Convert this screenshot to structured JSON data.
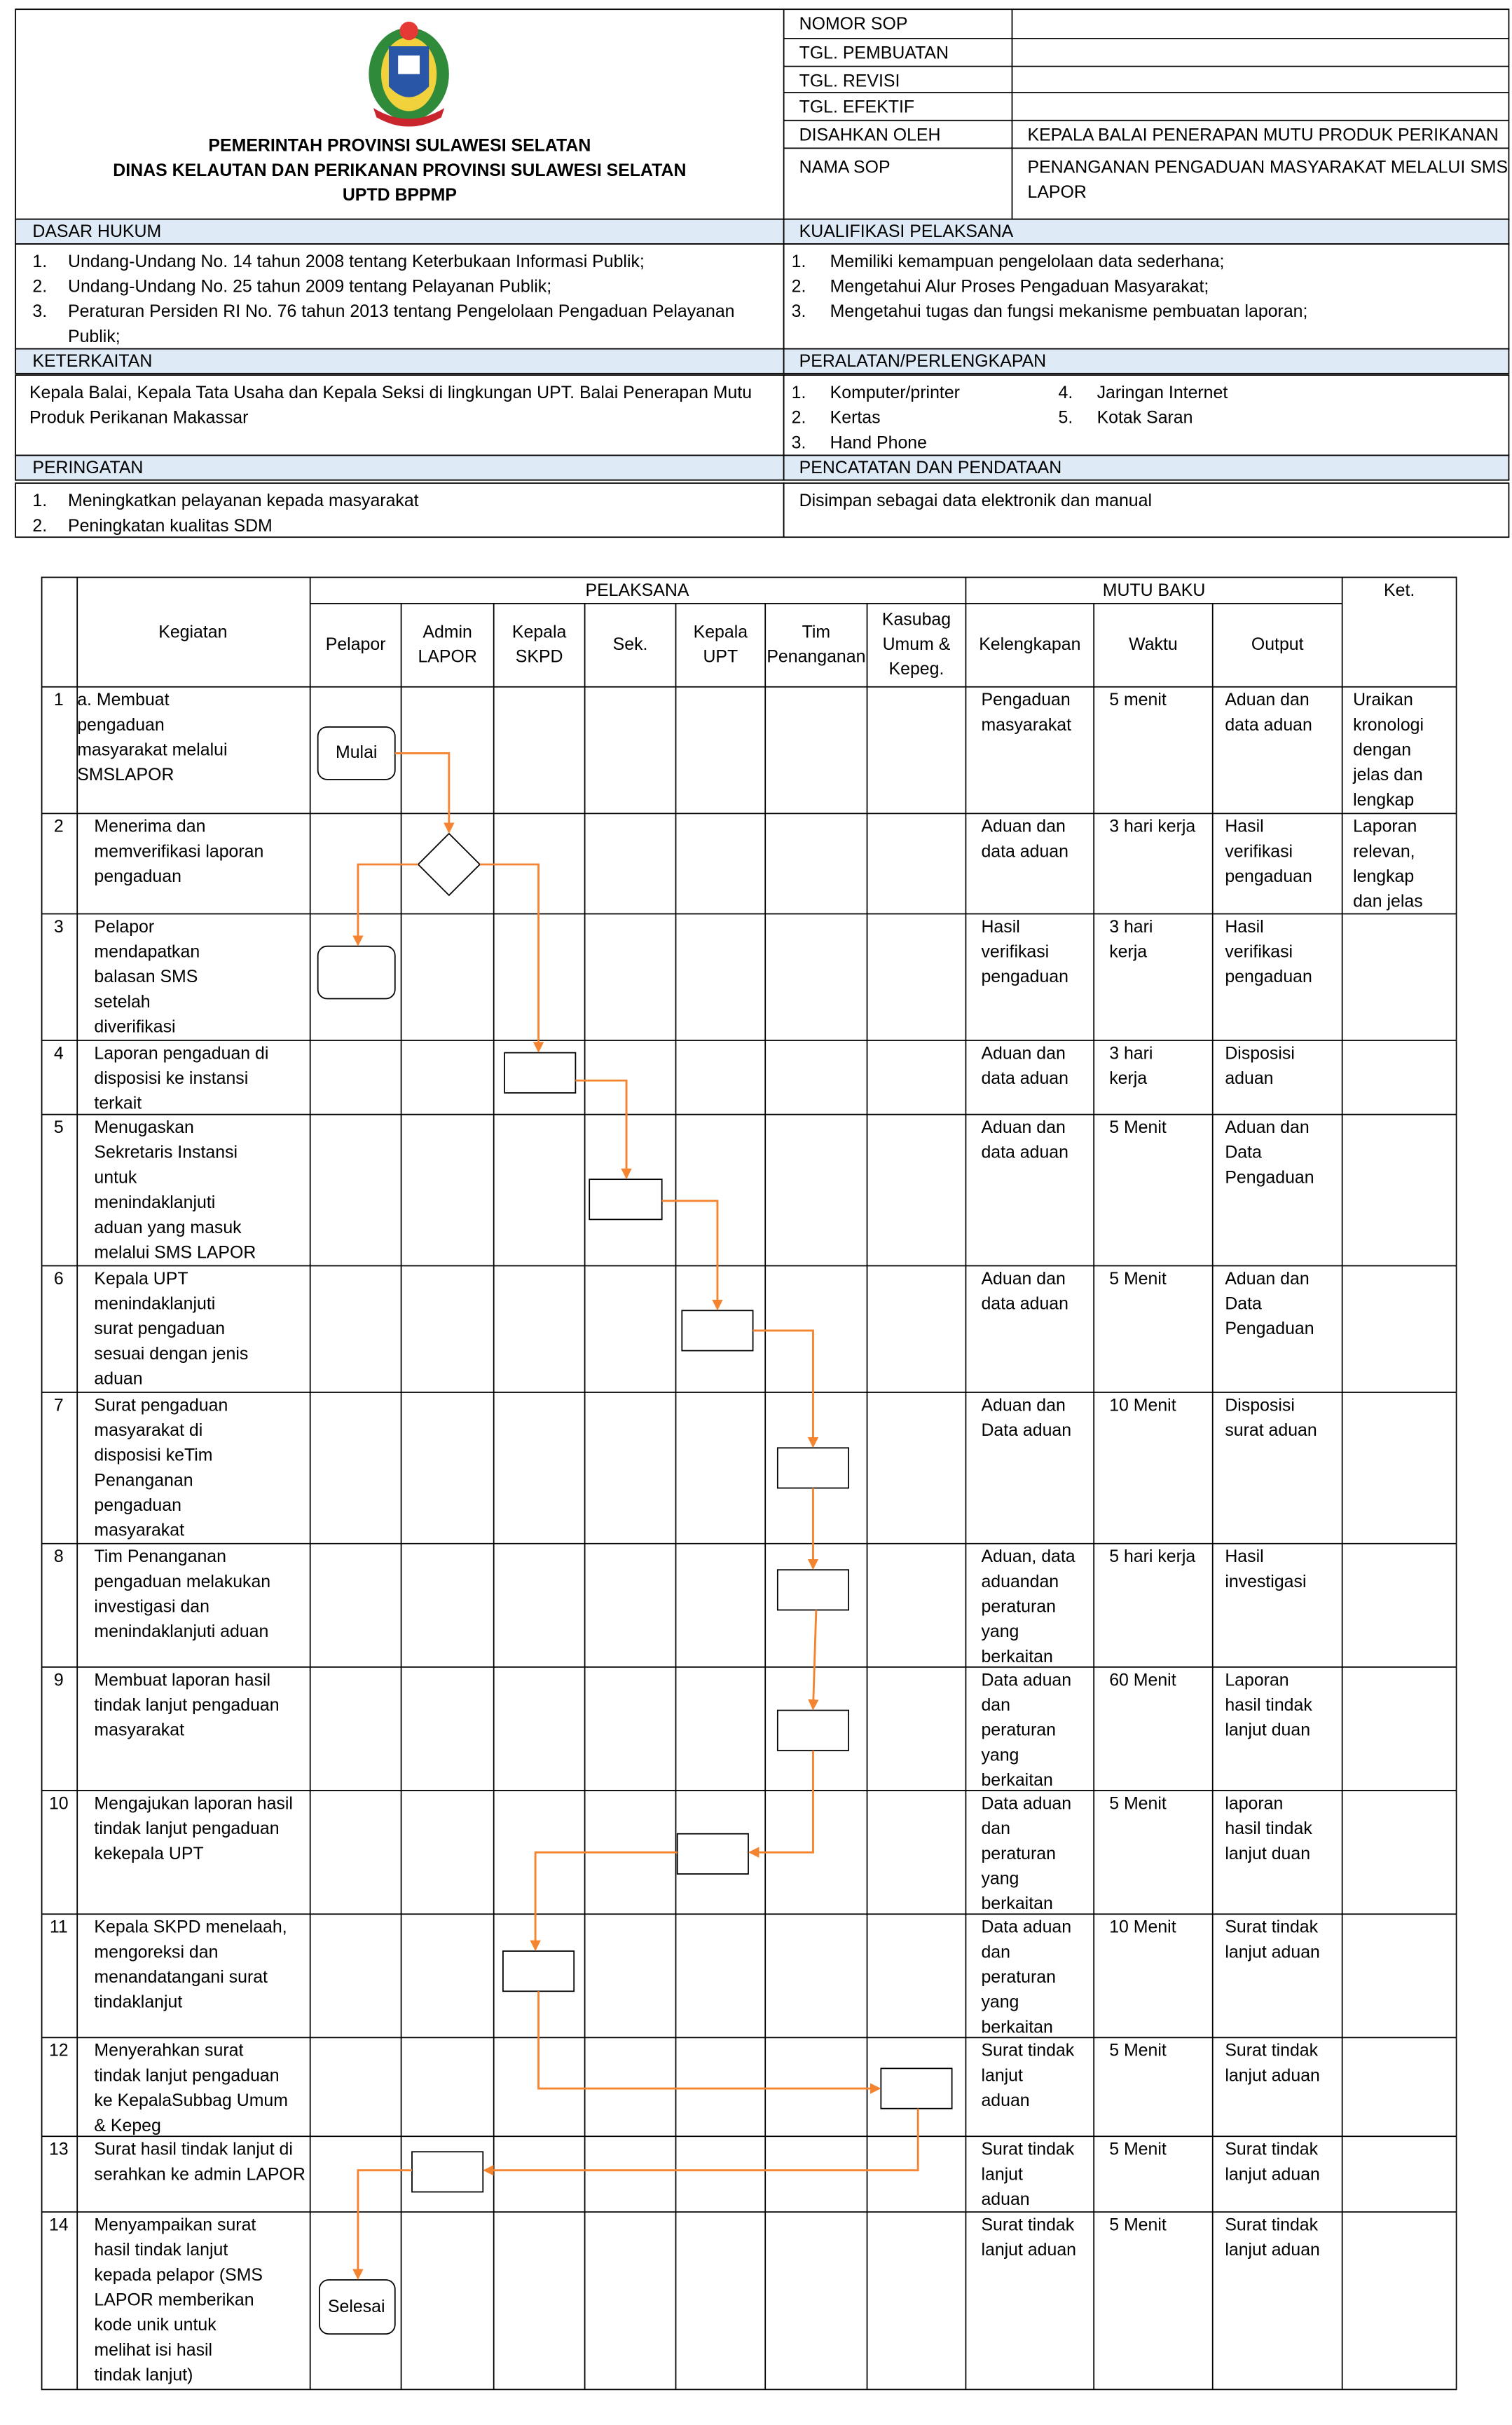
{
  "header": {
    "org": [
      "PEMERINTAH PROVINSI SULAWESI SELATAN",
      "DINAS KELAUTAN DAN PERIKANAN PROVINSI SULAWESI SELATAN",
      "UPTD BPPMP"
    ],
    "info": [
      {
        "label": "NOMOR SOP",
        "value": []
      },
      {
        "label": "TGL. PEMBUATAN",
        "value": []
      },
      {
        "label": "TGL. REVISI",
        "value": []
      },
      {
        "label": "TGL. EFEKTIF",
        "value": []
      },
      {
        "label": "DISAHKAN OLEH",
        "value": [
          "KEPALA BALAI PENERAPAN MUTU PRODUK PERIKANAN"
        ]
      },
      {
        "label": "NAMA SOP",
        "value": [
          "PENANGANAN PENGADUAN MASYARAKAT MELALUI SMS",
          "LAPOR"
        ]
      }
    ]
  },
  "sections": [
    {
      "title": "DASAR HUKUM",
      "items": [
        {
          "no": "1.",
          "lines": [
            "Undang-Undang No. 14 tahun 2008 tentang Keterbukaan Informasi Publik;"
          ]
        },
        {
          "no": "2.",
          "lines": [
            "Undang-Undang No. 25 tahun 2009 tentang Pelayanan Publik;"
          ]
        },
        {
          "no": "3.",
          "lines": [
            "Peraturan Persiden RI No. 76 tahun 2013 tentang Pengelolaan Pengaduan Pelayanan",
            "Publik;"
          ]
        }
      ]
    },
    {
      "title": "KUALIFIKASI PELAKSANA",
      "items": [
        {
          "no": "1.",
          "lines": [
            "Memiliki kemampuan pengelolaan data sederhana;"
          ]
        },
        {
          "no": "2.",
          "lines": [
            "Mengetahui Alur Proses Pengaduan Masyarakat;"
          ]
        },
        {
          "no": "3.",
          "lines": [
            "Mengetahui tugas dan fungsi mekanisme pembuatan laporan;"
          ]
        }
      ]
    },
    {
      "title": "KETERKAITAN",
      "items": [
        {
          "lines": [
            "Kepala Balai, Kepala Tata Usaha dan Kepala Seksi di lingkungan UPT. Balai Penerapan Mutu",
            "Produk Perikanan  Makassar"
          ]
        }
      ]
    },
    {
      "title": "PERALATAN/PERLENGKAPAN",
      "items": [
        {
          "no": "1.",
          "lines": [
            "Komputer/printer"
          ]
        },
        {
          "no": "2.",
          "lines": [
            "Kertas"
          ]
        },
        {
          "no": "3.",
          "lines": [
            "Hand Phone"
          ]
        },
        {
          "no": "4.",
          "lines": [
            "Jaringan Internet"
          ]
        },
        {
          "no": "5.",
          "lines": [
            "Kotak Saran"
          ]
        }
      ]
    },
    {
      "title": "PERINGATAN",
      "items": [
        {
          "no": "1.",
          "lines": [
            "Meningkatkan pelayanan kepada masyarakat"
          ]
        },
        {
          "no": "2.",
          "lines": [
            "Peningkatan kualitas SDM"
          ]
        }
      ]
    },
    {
      "title": "PENCATATAN  DAN PENDATAAN",
      "items": [
        {
          "lines": [
            "Disimpan sebagai data elektronik dan manual"
          ]
        }
      ]
    }
  ],
  "table": {
    "groups": [
      "PELAKSANA",
      "MUTU BAKU",
      "Ket."
    ],
    "kegiatan": "Kegiatan",
    "columns": [
      [
        "Pelapor"
      ],
      [
        "Admin",
        "LAPOR"
      ],
      [
        "Kepala",
        "SKPD"
      ],
      [
        "Sek."
      ],
      [
        "Kepala",
        "UPT"
      ],
      [
        "Tim",
        "Penanganan"
      ],
      [
        "Kasubag",
        "Umum &",
        "Kepeg."
      ],
      [
        "Kelengkapan"
      ],
      [
        "Waktu"
      ],
      [
        "Output"
      ]
    ],
    "flow": {
      "start": "Mulai",
      "end": "Selesai"
    },
    "rows": [
      {
        "no": "1",
        "kegiatan": [
          "a. Membuat",
          "pengaduan",
          "masyarakat melalui",
          "SMSLAPOR"
        ],
        "kelengkapan": [
          "Pengaduan",
          "masyarakat"
        ],
        "waktu": [
          "5 menit"
        ],
        "output": [
          "Aduan dan",
          "data aduan"
        ],
        "ket": [
          "Uraikan",
          "kronologi",
          "dengan",
          "jelas dan",
          "lengkap"
        ]
      },
      {
        "no": "2",
        "kegiatan": [
          "Menerima dan",
          "memverifikasi laporan",
          "pengaduan"
        ],
        "kelengkapan": [
          "Aduan dan",
          "data aduan"
        ],
        "waktu": [
          "3 hari kerja"
        ],
        "output": [
          "Hasil",
          "verifikasi",
          "pengaduan"
        ],
        "ket": [
          "Laporan",
          "relevan,",
          "lengkap",
          "dan jelas"
        ]
      },
      {
        "no": "3",
        "kegiatan": [
          "Pelapor",
          "mendapatkan",
          "balasan SMS",
          "setelah",
          "diverifikasi"
        ],
        "kelengkapan": [
          "Hasil",
          "verifikasi",
          "pengaduan"
        ],
        "waktu": [
          "3 hari",
          "kerja"
        ],
        "output": [
          "Hasil",
          "verifikasi",
          "pengaduan"
        ]
      },
      {
        "no": "4",
        "kegiatan": [
          "Laporan pengaduan di",
          "disposisi ke instansi",
          "terkait"
        ],
        "kelengkapan": [
          "Aduan dan",
          "data aduan"
        ],
        "waktu": [
          "3 hari",
          "kerja"
        ],
        "output": [
          "Disposisi",
          "aduan"
        ]
      },
      {
        "no": "5",
        "kegiatan": [
          "Menugaskan",
          "Sekretaris Instansi",
          "untuk",
          "menindaklanjuti",
          "aduan yang masuk",
          "melalui SMS LAPOR"
        ],
        "kelengkapan": [
          "Aduan dan",
          "data aduan"
        ],
        "waktu": [
          "5 Menit"
        ],
        "output": [
          "Aduan dan",
          "Data",
          "Pengaduan"
        ]
      },
      {
        "no": "6",
        "kegiatan": [
          "Kepala UPT",
          "menindaklanjuti",
          "surat pengaduan",
          "sesuai dengan jenis",
          "aduan"
        ],
        "kelengkapan": [
          "Aduan dan",
          "data aduan"
        ],
        "waktu": [
          "5 Menit"
        ],
        "output": [
          "Aduan dan",
          "Data",
          "Pengaduan"
        ]
      },
      {
        "no": "7",
        "kegiatan": [
          "Surat pengaduan",
          "masyarakat  di",
          "disposisi keTim",
          "Penanganan",
          "pengaduan",
          "masyarakat"
        ],
        "kelengkapan": [
          "Aduan dan",
          "Data aduan"
        ],
        "waktu": [
          "10 Menit"
        ],
        "output": [
          "Disposisi",
          "surat aduan"
        ]
      },
      {
        "no": "8",
        "kegiatan": [
          "Tim Penanganan",
          "pengaduan melakukan",
          "investigasi dan",
          "menindaklanjuti aduan"
        ],
        "kelengkapan": [
          "Aduan, data",
          "aduandan",
          "peraturan",
          "yang",
          "berkaitan"
        ],
        "waktu": [
          "5 hari kerja"
        ],
        "output": [
          "Hasil",
          "investigasi"
        ]
      },
      {
        "no": "9",
        "kegiatan": [
          "Membuat laporan hasil",
          "tindak lanjut  pengaduan",
          "masyarakat"
        ],
        "kelengkapan": [
          "Data aduan",
          "dan",
          "peraturan",
          "yang",
          "berkaitan"
        ],
        "waktu": [
          "60 Menit"
        ],
        "output": [
          "Laporan",
          "hasil tindak",
          "lanjut duan"
        ]
      },
      {
        "no": "10",
        "kegiatan": [
          "Mengajukan laporan hasil",
          "tindak lanjut pengaduan",
          "kekepala UPT"
        ],
        "kelengkapan": [
          "Data aduan",
          "dan",
          "peraturan",
          "yang",
          "berkaitan"
        ],
        "waktu": [
          "5 Menit"
        ],
        "output": [
          "laporan",
          "hasil tindak",
          "lanjut duan"
        ]
      },
      {
        "no": "11",
        "kegiatan": [
          "Kepala SKPD menelaah,",
          "mengoreksi dan",
          "menandatangani surat",
          "tindaklanjut"
        ],
        "kelengkapan": [
          "Data aduan",
          "dan",
          "peraturan",
          "yang",
          "berkaitan"
        ],
        "waktu": [
          "10 Menit"
        ],
        "output": [
          "Surat tindak",
          "lanjut aduan"
        ]
      },
      {
        "no": "12",
        "kegiatan": [
          "Menyerahkan surat",
          "tindak lanjut pengaduan",
          "ke KepalaSubbag Umum",
          "& Kepeg"
        ],
        "kelengkapan": [
          "Surat tindak",
          "lanjut",
          "aduan"
        ],
        "waktu": [
          "5 Menit"
        ],
        "output": [
          "Surat tindak",
          "lanjut aduan"
        ]
      },
      {
        "no": "13",
        "kegiatan": [
          "Surat hasil tindak lanjut di",
          "serahkan ke admin LAPOR"
        ],
        "kelengkapan": [
          "Surat tindak",
          "lanjut",
          "aduan"
        ],
        "waktu": [
          "5 Menit"
        ],
        "output": [
          "Surat tindak",
          "lanjut aduan"
        ]
      },
      {
        "no": "14",
        "kegiatan": [
          "Menyampaikan surat",
          "hasil tindak lanjut",
          "kepada pelapor (SMS",
          "LAPOR memberikan",
          "kode unik untuk",
          "melihat isi hasil",
          "tindak lanjut)"
        ],
        "kelengkapan": [
          "Surat tindak",
          "lanjut aduan"
        ],
        "waktu": [
          "5 Menit"
        ],
        "output": [
          "Surat tindak",
          "lanjut aduan"
        ]
      }
    ]
  }
}
